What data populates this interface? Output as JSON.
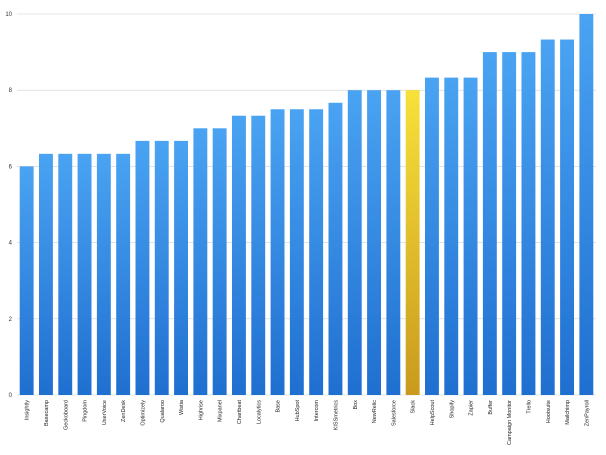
{
  "chart_data": {
    "type": "bar",
    "title": "",
    "xlabel": "",
    "ylabel": "",
    "ylim": [
      0,
      10
    ],
    "yticks": [
      0,
      2,
      4,
      6,
      8,
      10
    ],
    "grid": true,
    "categories": [
      "Insightly",
      "Basecamp",
      "Geckoboard",
      "Pingdom",
      "UserVoice",
      "ZenDesk",
      "Optimizely",
      "Qualaroo",
      "Wistia",
      "Highrise",
      "Mixpanel",
      "Chartbeat",
      "Localytics",
      "Base",
      "HubSpot",
      "Intercom",
      "KISSmetrics",
      "Box",
      "NewRelic",
      "Salesforce",
      "Slack",
      "HelpScout",
      "Shopify",
      "Zapier",
      "Buffer",
      "Campaign Monitor",
      "Trello",
      "Hootsuite",
      "Mailchimp",
      "ZenPayroll"
    ],
    "values": [
      6.0,
      6.33,
      6.33,
      6.33,
      6.33,
      6.33,
      6.67,
      6.67,
      6.67,
      7.0,
      7.0,
      7.33,
      7.33,
      7.5,
      7.5,
      7.5,
      7.67,
      8.0,
      8.0,
      8.0,
      8.0,
      8.33,
      8.33,
      8.33,
      9.0,
      9.0,
      9.0,
      9.33,
      9.33,
      10.0
    ],
    "highlight": "Slack",
    "colors": {
      "bar_top": "#4aa3f2",
      "bar_bottom": "#1f6fd0",
      "highlight_top": "#f7e13a",
      "highlight_bottom": "#c99a1e",
      "grid": "#d0d0d0"
    }
  }
}
